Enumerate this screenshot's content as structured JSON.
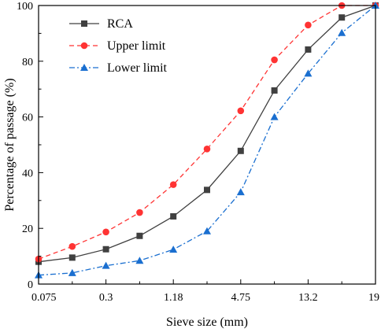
{
  "chart_data": {
    "type": "line",
    "xlabel": "Sieve size (mm)",
    "ylabel": "Percentage of passage (%)",
    "x_tick_labels": [
      "0.075",
      "0.3",
      "1.18",
      "4.75",
      "13.2",
      "19"
    ],
    "x_tick_positions": [
      0,
      2,
      4,
      6,
      8,
      10
    ],
    "x_points": [
      0,
      1,
      2,
      3,
      4,
      5,
      6,
      7,
      8,
      9,
      10
    ],
    "ylim": [
      0,
      100
    ],
    "y_ticks": [
      0,
      20,
      40,
      60,
      80,
      100
    ],
    "grid": false,
    "legend_position": "top-left",
    "series": [
      {
        "name": "RCA",
        "color": "#404040",
        "line_style": "solid",
        "marker": "square",
        "values": [
          8,
          9.5,
          12.5,
          17.3,
          24.3,
          33.8,
          47.8,
          69.5,
          84.2,
          95.7,
          100
        ]
      },
      {
        "name": "Upper limit",
        "color": "#ff3333",
        "line_style": "dashed",
        "marker": "circle",
        "values": [
          9,
          13.5,
          18.7,
          25.7,
          35.7,
          48.5,
          62.2,
          80.5,
          93,
          100,
          100
        ]
      },
      {
        "name": "Lower limit",
        "color": "#1a6fd0",
        "line_style": "dash-dot",
        "marker": "triangle",
        "values": [
          3.2,
          4,
          6.6,
          8.4,
          12.4,
          19,
          33,
          60,
          75.6,
          90.2,
          100
        ]
      }
    ]
  }
}
